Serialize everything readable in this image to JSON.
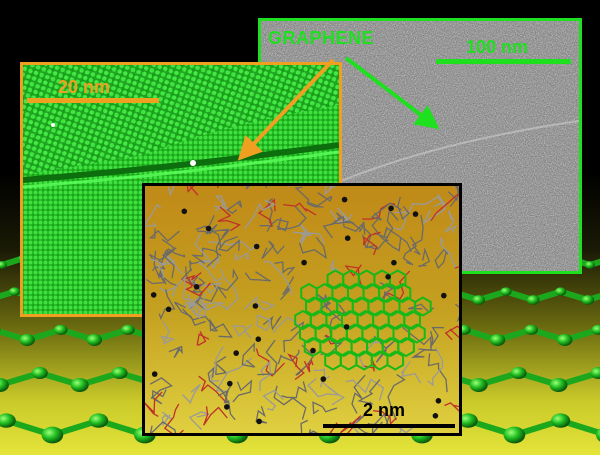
{
  "labels": {
    "material": "GRAPHENE",
    "tem_scale": "100 nm",
    "simulation_scale": "20 nm",
    "molecular_scale": "2 nm"
  },
  "colors": {
    "tem_accent": "#1fe01f",
    "simulation_accent": "#f0a020",
    "graphene_green": "#22cc22",
    "background_yellow": "#e4e43a"
  },
  "icons": {
    "tem_pointer": "green-arrow-icon",
    "simulation_pointer": "orange-arrow-icon"
  }
}
